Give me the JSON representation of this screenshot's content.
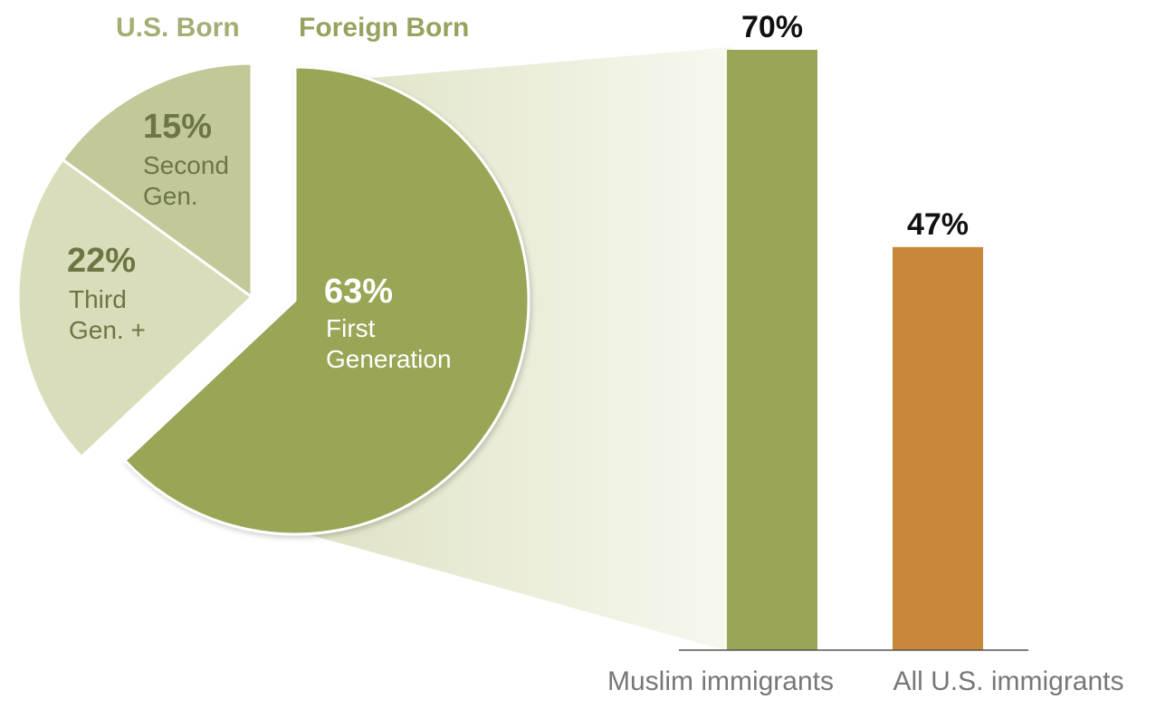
{
  "chart_data": [
    {
      "type": "pie",
      "group_labels": [
        {
          "text": "U.S. Born",
          "color": "#a6ad74"
        },
        {
          "text": "Foreign Born",
          "color": "#97a25e"
        }
      ],
      "slices": [
        {
          "pct": "15%",
          "line1": "Second",
          "line2": "Gen.",
          "value": 15,
          "color": "#c3c898",
          "text_color": "#6e7544",
          "group": "U.S. Born"
        },
        {
          "pct": "22%",
          "line1": "Third",
          "line2": "Gen. +",
          "value": 22,
          "color": "#d9ddb9",
          "text_color": "#6e7544",
          "group": "U.S. Born"
        },
        {
          "pct": "63%",
          "line1": "First",
          "line2": "Generation",
          "value": 63,
          "color": "#9aa557",
          "text_color": "#ffffff",
          "group": "Foreign Born",
          "exploded": true
        }
      ]
    },
    {
      "type": "bar",
      "categories": [
        "Muslim immigrants",
        "All U.S. immigrants"
      ],
      "values": [
        70,
        47
      ],
      "value_labels": [
        "70%",
        "47%"
      ],
      "colors": [
        "#9aa557",
        "#c8883a"
      ],
      "ylim": [
        0,
        70
      ],
      "grid": false
    }
  ]
}
